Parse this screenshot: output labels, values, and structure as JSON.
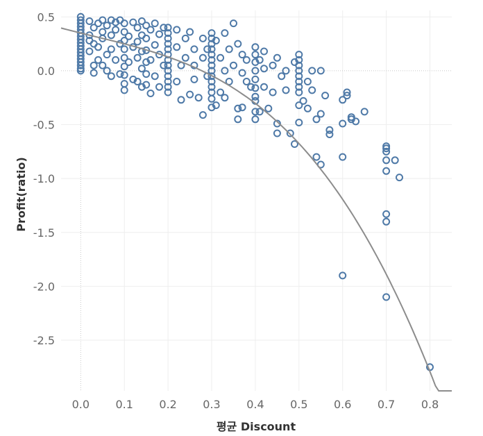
{
  "chart_data": {
    "type": "scatter",
    "title": "",
    "xlabel": "평균 Discount",
    "ylabel": "Profit(ratio)",
    "xlim": [
      -0.045,
      0.85
    ],
    "ylim": [
      -2.97,
      0.56
    ],
    "x_ticks": [
      0.0,
      0.1,
      0.2,
      0.3,
      0.4,
      0.5,
      0.6,
      0.7,
      0.8
    ],
    "x_tick_labels": [
      "0.0",
      "0.1",
      "0.2",
      "0.3",
      "0.4",
      "0.5",
      "0.6",
      "0.7",
      "0.8"
    ],
    "y_ticks": [
      0.5,
      0.0,
      -0.5,
      -1.0,
      -1.5,
      -2.0,
      -2.5
    ],
    "y_tick_labels": [
      "0.5",
      "0.0",
      "-0.5",
      "-1.0",
      "-1.5",
      "-2.0",
      "-2.5"
    ],
    "grid": true,
    "colors": {
      "point": "#4e79a7",
      "trend": "#8c8c8c"
    },
    "trend": {
      "kind": "polynomial",
      "coefficients": [
        0.35,
        -1.0,
        0.5,
        -5.2
      ]
    },
    "series": [
      {
        "name": "Profit(ratio)",
        "points": [
          [
            0.0,
            0.5
          ],
          [
            0.0,
            0.47
          ],
          [
            0.0,
            0.44
          ],
          [
            0.0,
            0.41
          ],
          [
            0.0,
            0.38
          ],
          [
            0.0,
            0.35
          ],
          [
            0.0,
            0.32
          ],
          [
            0.0,
            0.29
          ],
          [
            0.0,
            0.26
          ],
          [
            0.0,
            0.23
          ],
          [
            0.0,
            0.2
          ],
          [
            0.0,
            0.17
          ],
          [
            0.0,
            0.14
          ],
          [
            0.0,
            0.11
          ],
          [
            0.0,
            0.08
          ],
          [
            0.0,
            0.05
          ],
          [
            0.0,
            0.02
          ],
          [
            0.0,
            0.0
          ],
          [
            0.02,
            0.46
          ],
          [
            0.03,
            0.4
          ],
          [
            0.02,
            0.33
          ],
          [
            0.03,
            0.25
          ],
          [
            0.02,
            0.18
          ],
          [
            0.04,
            0.1
          ],
          [
            0.03,
            0.05
          ],
          [
            0.02,
            0.28
          ],
          [
            0.04,
            0.44
          ],
          [
            0.03,
            -0.02
          ],
          [
            0.05,
            0.36
          ],
          [
            0.04,
            0.22
          ],
          [
            0.05,
            0.47
          ],
          [
            0.06,
            0.42
          ],
          [
            0.05,
            0.3
          ],
          [
            0.06,
            0.15
          ],
          [
            0.05,
            0.05
          ],
          [
            0.07,
            0.47
          ],
          [
            0.07,
            0.33
          ],
          [
            0.07,
            0.2
          ],
          [
            0.06,
            0.0
          ],
          [
            0.08,
            0.45
          ],
          [
            0.08,
            0.38
          ],
          [
            0.08,
            0.1
          ],
          [
            0.07,
            -0.05
          ],
          [
            0.09,
            0.47
          ],
          [
            0.09,
            0.25
          ],
          [
            0.09,
            -0.03
          ],
          [
            0.1,
            0.44
          ],
          [
            0.1,
            0.36
          ],
          [
            0.1,
            0.28
          ],
          [
            0.1,
            0.2
          ],
          [
            0.1,
            0.12
          ],
          [
            0.1,
            0.04
          ],
          [
            0.1,
            -0.04
          ],
          [
            0.1,
            -0.12
          ],
          [
            0.1,
            -0.18
          ],
          [
            0.12,
            0.45
          ],
          [
            0.11,
            0.32
          ],
          [
            0.12,
            0.22
          ],
          [
            0.11,
            0.08
          ],
          [
            0.12,
            -0.08
          ],
          [
            0.13,
            0.4
          ],
          [
            0.13,
            0.27
          ],
          [
            0.13,
            0.12
          ],
          [
            0.13,
            -0.1
          ],
          [
            0.14,
            0.46
          ],
          [
            0.14,
            0.33
          ],
          [
            0.14,
            0.18
          ],
          [
            0.14,
            0.02
          ],
          [
            0.14,
            -0.15
          ],
          [
            0.15,
            0.42
          ],
          [
            0.15,
            0.3
          ],
          [
            0.15,
            0.19
          ],
          [
            0.15,
            0.08
          ],
          [
            0.15,
            -0.03
          ],
          [
            0.15,
            -0.13
          ],
          [
            0.16,
            0.38
          ],
          [
            0.16,
            0.1
          ],
          [
            0.16,
            -0.21
          ],
          [
            0.17,
            0.44
          ],
          [
            0.17,
            0.24
          ],
          [
            0.17,
            -0.05
          ],
          [
            0.18,
            0.34
          ],
          [
            0.18,
            0.15
          ],
          [
            0.18,
            -0.15
          ],
          [
            0.19,
            0.4
          ],
          [
            0.19,
            0.05
          ],
          [
            0.2,
            0.4
          ],
          [
            0.2,
            0.35
          ],
          [
            0.2,
            0.3
          ],
          [
            0.2,
            0.25
          ],
          [
            0.2,
            0.2
          ],
          [
            0.2,
            0.15
          ],
          [
            0.2,
            0.1
          ],
          [
            0.2,
            0.05
          ],
          [
            0.2,
            0.0
          ],
          [
            0.2,
            -0.05
          ],
          [
            0.2,
            -0.1
          ],
          [
            0.2,
            -0.15
          ],
          [
            0.2,
            -0.2
          ],
          [
            0.22,
            0.38
          ],
          [
            0.22,
            0.22
          ],
          [
            0.23,
            0.05
          ],
          [
            0.22,
            -0.1
          ],
          [
            0.24,
            0.3
          ],
          [
            0.24,
            0.12
          ],
          [
            0.25,
            -0.22
          ],
          [
            0.23,
            -0.27
          ],
          [
            0.25,
            0.36
          ],
          [
            0.26,
            0.2
          ],
          [
            0.26,
            0.05
          ],
          [
            0.26,
            -0.08
          ],
          [
            0.27,
            -0.25
          ],
          [
            0.28,
            0.3
          ],
          [
            0.28,
            0.12
          ],
          [
            0.28,
            -0.41
          ],
          [
            0.29,
            0.2
          ],
          [
            0.29,
            -0.05
          ],
          [
            0.3,
            0.35
          ],
          [
            0.3,
            0.3
          ],
          [
            0.3,
            0.25
          ],
          [
            0.3,
            0.2
          ],
          [
            0.3,
            0.15
          ],
          [
            0.3,
            0.1
          ],
          [
            0.3,
            0.05
          ],
          [
            0.3,
            0.0
          ],
          [
            0.3,
            -0.05
          ],
          [
            0.3,
            -0.1
          ],
          [
            0.3,
            -0.15
          ],
          [
            0.3,
            -0.2
          ],
          [
            0.3,
            -0.26
          ],
          [
            0.3,
            -0.34
          ],
          [
            0.31,
            0.28
          ],
          [
            0.31,
            -0.32
          ],
          [
            0.32,
            0.12
          ],
          [
            0.32,
            -0.2
          ],
          [
            0.33,
            0.35
          ],
          [
            0.33,
            0.0
          ],
          [
            0.33,
            -0.25
          ],
          [
            0.34,
            0.2
          ],
          [
            0.34,
            -0.1
          ],
          [
            0.35,
            0.44
          ],
          [
            0.35,
            0.05
          ],
          [
            0.36,
            0.25
          ],
          [
            0.36,
            -0.35
          ],
          [
            0.36,
            -0.45
          ],
          [
            0.37,
            0.15
          ],
          [
            0.37,
            -0.02
          ],
          [
            0.37,
            -0.34
          ],
          [
            0.38,
            0.1
          ],
          [
            0.38,
            -0.1
          ],
          [
            0.39,
            -0.15
          ],
          [
            0.4,
            0.22
          ],
          [
            0.4,
            0.15
          ],
          [
            0.4,
            0.08
          ],
          [
            0.4,
            0.0
          ],
          [
            0.4,
            -0.08
          ],
          [
            0.4,
            -0.16
          ],
          [
            0.4,
            -0.24
          ],
          [
            0.4,
            -0.28
          ],
          [
            0.4,
            -0.38
          ],
          [
            0.4,
            -0.45
          ],
          [
            0.41,
            0.1
          ],
          [
            0.41,
            -0.38
          ],
          [
            0.42,
            0.18
          ],
          [
            0.42,
            0.02
          ],
          [
            0.42,
            -0.15
          ],
          [
            0.43,
            -0.35
          ],
          [
            0.44,
            0.05
          ],
          [
            0.44,
            -0.2
          ],
          [
            0.45,
            0.12
          ],
          [
            0.45,
            -0.49
          ],
          [
            0.45,
            -0.58
          ],
          [
            0.46,
            -0.05
          ],
          [
            0.47,
            0.0
          ],
          [
            0.47,
            -0.18
          ],
          [
            0.48,
            -0.58
          ],
          [
            0.49,
            0.08
          ],
          [
            0.49,
            -0.68
          ],
          [
            0.5,
            0.15
          ],
          [
            0.5,
            0.1
          ],
          [
            0.5,
            0.05
          ],
          [
            0.5,
            0.0
          ],
          [
            0.5,
            -0.05
          ],
          [
            0.5,
            -0.1
          ],
          [
            0.5,
            -0.15
          ],
          [
            0.5,
            -0.2
          ],
          [
            0.5,
            -0.32
          ],
          [
            0.5,
            -0.48
          ],
          [
            0.51,
            -0.28
          ],
          [
            0.52,
            -0.1
          ],
          [
            0.52,
            -0.35
          ],
          [
            0.53,
            0.0
          ],
          [
            0.53,
            -0.18
          ],
          [
            0.54,
            -0.45
          ],
          [
            0.54,
            -0.8
          ],
          [
            0.55,
            0.0
          ],
          [
            0.55,
            -0.4
          ],
          [
            0.55,
            -0.87
          ],
          [
            0.56,
            -0.23
          ],
          [
            0.57,
            -0.55
          ],
          [
            0.57,
            -0.59
          ],
          [
            0.6,
            -0.27
          ],
          [
            0.6,
            -0.49
          ],
          [
            0.6,
            -0.8
          ],
          [
            0.6,
            -1.9
          ],
          [
            0.61,
            -0.2
          ],
          [
            0.61,
            -0.23
          ],
          [
            0.62,
            -0.43
          ],
          [
            0.62,
            -0.45
          ],
          [
            0.63,
            -0.47
          ],
          [
            0.65,
            -0.38
          ],
          [
            0.7,
            -0.7
          ],
          [
            0.7,
            -0.72
          ],
          [
            0.7,
            -0.75
          ],
          [
            0.7,
            -0.83
          ],
          [
            0.7,
            -0.93
          ],
          [
            0.7,
            -1.33
          ],
          [
            0.7,
            -1.4
          ],
          [
            0.7,
            -2.1
          ],
          [
            0.72,
            -0.83
          ],
          [
            0.73,
            -0.99
          ],
          [
            0.8,
            -2.75
          ]
        ]
      }
    ]
  }
}
